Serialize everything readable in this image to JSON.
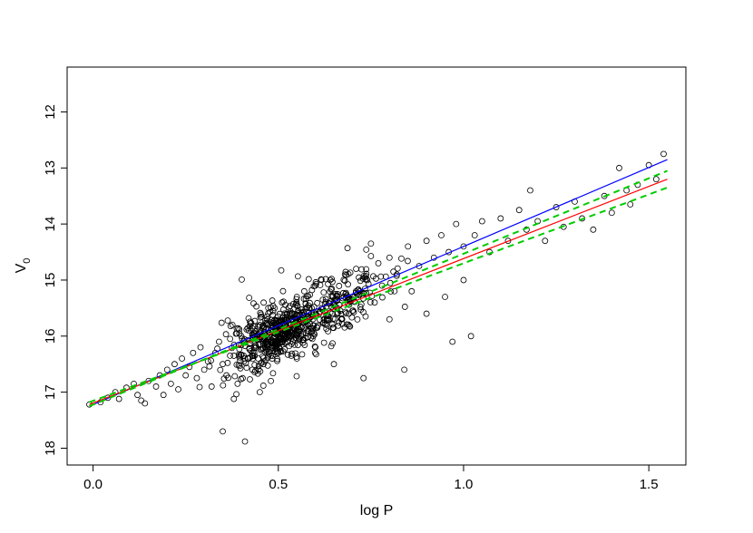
{
  "chart_data": {
    "type": "scatter",
    "title": "",
    "xlabel": "log P",
    "ylabel": {
      "main": "V",
      "sub": "0"
    },
    "xlim": [
      -0.07,
      1.6
    ],
    "ylim": [
      18.3,
      11.2
    ],
    "y_reversed": true,
    "grid": false,
    "x_ticks": [
      {
        "value": 0.0,
        "label": "0.0"
      },
      {
        "value": 0.5,
        "label": "0.5"
      },
      {
        "value": 1.0,
        "label": "1.0"
      },
      {
        "value": 1.5,
        "label": "1.5"
      }
    ],
    "y_ticks": [
      {
        "value": 12,
        "label": "12"
      },
      {
        "value": 13,
        "label": "13"
      },
      {
        "value": 14,
        "label": "14"
      },
      {
        "value": 15,
        "label": "15"
      },
      {
        "value": 16,
        "label": "16"
      },
      {
        "value": 17,
        "label": "17"
      },
      {
        "value": 18,
        "label": "18"
      }
    ],
    "points": [
      [
        -0.01,
        17.22
      ],
      [
        0.02,
        17.18
      ],
      [
        0.04,
        17.1
      ],
      [
        0.06,
        17.0
      ],
      [
        0.07,
        17.12
      ],
      [
        0.09,
        16.92
      ],
      [
        0.11,
        16.85
      ],
      [
        0.12,
        17.05
      ],
      [
        0.13,
        17.15
      ],
      [
        0.14,
        17.2
      ],
      [
        0.15,
        16.8
      ],
      [
        0.17,
        16.9
      ],
      [
        0.18,
        16.7
      ],
      [
        0.19,
        17.05
      ],
      [
        0.2,
        16.6
      ],
      [
        0.21,
        16.85
      ],
      [
        0.22,
        16.5
      ],
      [
        0.23,
        16.95
      ],
      [
        0.24,
        16.4
      ],
      [
        0.25,
        16.7
      ],
      [
        0.26,
        16.55
      ],
      [
        0.27,
        16.3
      ],
      [
        0.28,
        16.75
      ],
      [
        0.29,
        16.2
      ],
      [
        0.3,
        16.6
      ],
      [
        0.31,
        16.45
      ],
      [
        0.32,
        16.9
      ],
      [
        0.33,
        16.3
      ],
      [
        0.34,
        16.1
      ],
      [
        0.35,
        16.5
      ],
      [
        0.36,
        16.7
      ],
      [
        0.37,
        16.05
      ],
      [
        0.38,
        16.35
      ],
      [
        0.38,
        17.12
      ],
      [
        0.39,
        16.85
      ],
      [
        0.4,
        16.0
      ],
      [
        0.41,
        16.4
      ],
      [
        0.42,
        15.9
      ],
      [
        0.43,
        16.6
      ],
      [
        0.44,
        16.2
      ],
      [
        0.45,
        15.8
      ],
      [
        0.45,
        17.0
      ],
      [
        0.46,
        16.5
      ],
      [
        0.47,
        15.7
      ],
      [
        0.48,
        16.1
      ],
      [
        0.48,
        16.8
      ],
      [
        0.49,
        15.5
      ],
      [
        0.5,
        15.95
      ],
      [
        0.5,
        16.3
      ],
      [
        0.51,
        15.4
      ],
      [
        0.52,
        16.05
      ],
      [
        0.53,
        15.6
      ],
      [
        0.54,
        15.85
      ],
      [
        0.55,
        15.3
      ],
      [
        0.55,
        16.4
      ],
      [
        0.56,
        15.75
      ],
      [
        0.57,
        15.2
      ],
      [
        0.58,
        15.9
      ],
      [
        0.59,
        15.5
      ],
      [
        0.6,
        15.1
      ],
      [
        0.6,
        16.2
      ],
      [
        0.61,
        15.6
      ],
      [
        0.62,
        15.35
      ],
      [
        0.63,
        15.8
      ],
      [
        0.64,
        15.0
      ],
      [
        0.65,
        15.45
      ],
      [
        0.65,
        16.5
      ],
      [
        0.66,
        15.25
      ],
      [
        0.67,
        15.7
      ],
      [
        0.68,
        14.9
      ],
      [
        0.69,
        15.35
      ],
      [
        0.7,
        15.55
      ],
      [
        0.71,
        14.8
      ],
      [
        0.72,
        15.2
      ],
      [
        0.73,
        16.75
      ],
      [
        0.74,
        15.0
      ],
      [
        0.75,
        14.35
      ],
      [
        0.76,
        15.4
      ],
      [
        0.77,
        14.7
      ],
      [
        0.78,
        15.1
      ],
      [
        0.8,
        14.6
      ],
      [
        0.8,
        15.7
      ],
      [
        0.82,
        14.9
      ],
      [
        0.84,
        16.6
      ],
      [
        0.85,
        14.4
      ],
      [
        0.86,
        15.2
      ],
      [
        0.88,
        14.75
      ],
      [
        0.9,
        14.3
      ],
      [
        0.9,
        15.6
      ],
      [
        0.92,
        14.6
      ],
      [
        0.94,
        14.2
      ],
      [
        0.95,
        15.3
      ],
      [
        0.96,
        14.5
      ],
      [
        0.97,
        16.1
      ],
      [
        0.98,
        14.0
      ],
      [
        1.0,
        14.4
      ],
      [
        1.0,
        15.0
      ],
      [
        1.02,
        16.0
      ],
      [
        1.03,
        14.2
      ],
      [
        1.05,
        13.95
      ],
      [
        1.07,
        14.5
      ],
      [
        1.1,
        13.9
      ],
      [
        1.12,
        14.3
      ],
      [
        1.15,
        13.75
      ],
      [
        1.17,
        14.1
      ],
      [
        1.18,
        13.4
      ],
      [
        1.2,
        13.95
      ],
      [
        1.22,
        14.3
      ],
      [
        1.25,
        13.7
      ],
      [
        1.27,
        14.05
      ],
      [
        1.3,
        13.6
      ],
      [
        1.32,
        13.9
      ],
      [
        1.35,
        14.1
      ],
      [
        1.38,
        13.5
      ],
      [
        1.4,
        13.8
      ],
      [
        1.42,
        13.0
      ],
      [
        1.44,
        13.4
      ],
      [
        1.45,
        13.65
      ],
      [
        1.47,
        13.3
      ],
      [
        1.5,
        12.95
      ],
      [
        1.52,
        13.2
      ],
      [
        1.54,
        12.75
      ],
      [
        0.35,
        17.7
      ],
      [
        0.41,
        17.88
      ]
    ],
    "cloud": [
      {
        "x_center": 0.5,
        "y_center": 15.95,
        "x_spread": 0.045,
        "y_spread": 0.2,
        "count": 260
      },
      {
        "x_center": 0.58,
        "y_center": 15.65,
        "x_spread": 0.07,
        "y_spread": 0.3,
        "count": 200
      },
      {
        "x_center": 0.43,
        "y_center": 16.2,
        "x_spread": 0.05,
        "y_spread": 0.32,
        "count": 110
      },
      {
        "x_center": 0.7,
        "y_center": 15.25,
        "x_spread": 0.07,
        "y_spread": 0.3,
        "count": 110
      }
    ],
    "series": [
      {
        "color": "#0000ff",
        "style": "solid",
        "x": [
          -0.01,
          1.55
        ],
        "y": [
          17.25,
          12.85
        ]
      },
      {
        "color": "#ff0000",
        "style": "solid",
        "x": [
          -0.01,
          1.55
        ],
        "y": [
          17.22,
          13.2
        ]
      },
      {
        "color": "#00cc00",
        "style": "dashed",
        "x": [
          -0.01,
          1.55
        ],
        "y": [
          17.25,
          13.05
        ]
      },
      {
        "color": "#00cc00",
        "style": "dashed",
        "x": [
          -0.01,
          1.55
        ],
        "y": [
          17.18,
          13.35
        ]
      }
    ]
  }
}
